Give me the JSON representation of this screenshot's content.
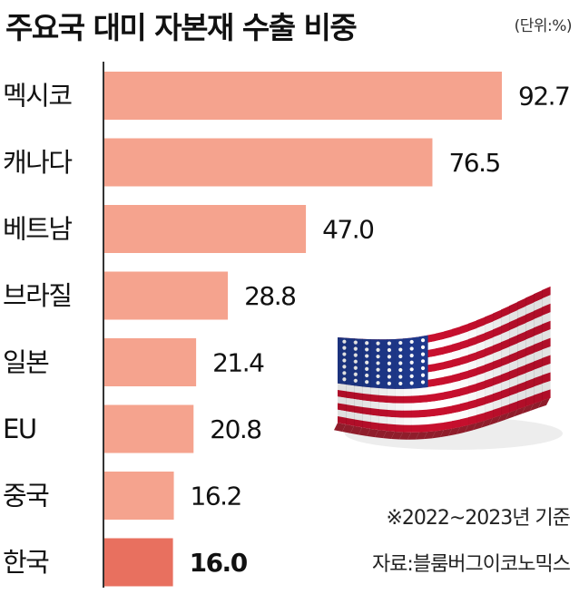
{
  "chart_data": {
    "type": "bar",
    "orientation": "horizontal",
    "title": "주요국 대미 자본재 수출 비중",
    "unit": "(단위:%)",
    "categories": [
      "멕시코",
      "캐나다",
      "베트남",
      "브라질",
      "일본",
      "EU",
      "중국",
      "한국"
    ],
    "values": [
      92.7,
      76.5,
      47.0,
      28.8,
      21.4,
      20.8,
      16.2,
      16.0
    ],
    "value_labels": [
      "92.7",
      "76.5",
      "47.0",
      "28.8",
      "21.4",
      "20.8",
      "16.2",
      "16.0"
    ],
    "highlight": "한국",
    "xlim": [
      0,
      92.7
    ],
    "grid": false,
    "legend": "none",
    "colors": {
      "bar": "#f5a38e",
      "highlight": "#e8705f",
      "axis": "#333333"
    }
  },
  "note": "※2022~2023년 기준",
  "source": "자료:블룸버그이코노믹스",
  "decoration": {
    "icon": "us-flag-icon"
  }
}
